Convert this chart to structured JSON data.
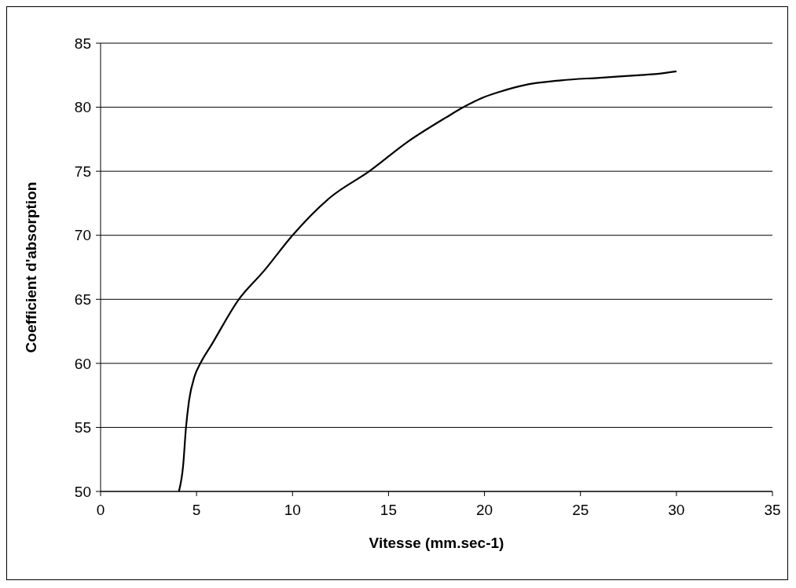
{
  "chart_data": {
    "type": "line",
    "xlabel": "Vitesse (mm.sec-1)",
    "ylabel": "Coefficient d'absorption",
    "series": [
      {
        "color": "#000000",
        "x": [
          4.08,
          4.3,
          4.45,
          4.6,
          4.9,
          5.2,
          5.8,
          7.2,
          8.5,
          10,
          12,
          14,
          16,
          18,
          18.9,
          20,
          21,
          22,
          24,
          26,
          28,
          29,
          30
        ],
        "values": [
          50,
          52,
          55,
          57,
          59,
          60,
          61.5,
          65,
          67.2,
          70,
          73,
          75,
          77.3,
          79.2,
          80,
          80.8,
          81.3,
          81.7,
          82.1,
          82.3,
          82.5,
          82.6,
          82.8
        ]
      }
    ],
    "xlim": [
      0,
      35
    ],
    "xticks": [
      0,
      5,
      10,
      15,
      20,
      25,
      30,
      35
    ],
    "ylim": [
      50,
      85
    ],
    "yticks": [
      50,
      55,
      60,
      65,
      70,
      75,
      80,
      85
    ],
    "grid": "y",
    "marker": "none",
    "line_style": "solid"
  }
}
